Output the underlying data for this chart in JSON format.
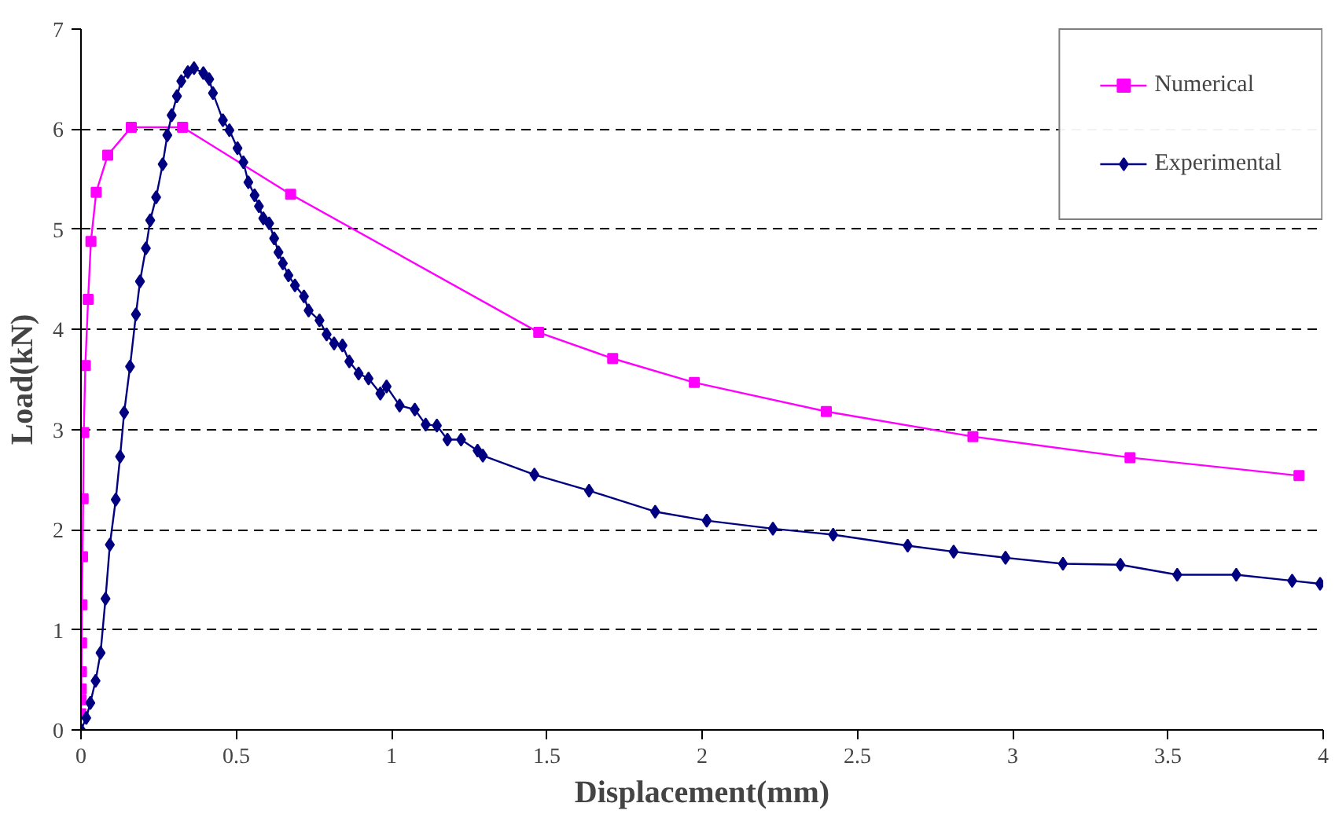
{
  "chart_data": {
    "type": "line",
    "xlabel": "Displacement(mm)",
    "ylabel": "Load(kN)",
    "xlim": [
      0,
      4
    ],
    "xticks": [
      0,
      0.5,
      1,
      1.5,
      2,
      2.5,
      3,
      3.5,
      4
    ],
    "ylim": [
      0,
      7
    ],
    "yticks": [
      0,
      1,
      2,
      3,
      4,
      5,
      6,
      7
    ],
    "grid": "y",
    "legend": "top right",
    "series": [
      {
        "name": "Numerical",
        "color": "#ff00ff",
        "marker": "square",
        "x": [
          0.0,
          0.0005,
          0.001,
          0.0015,
          0.002,
          0.003,
          0.005,
          0.007,
          0.009,
          0.014,
          0.023,
          0.032,
          0.049,
          0.086,
          0.162,
          0.327,
          0.675,
          1.474,
          1.712,
          1.975,
          2.4,
          2.872,
          3.378,
          3.922
        ],
        "values": [
          0.16,
          0.3,
          0.41,
          0.58,
          0.87,
          1.25,
          1.73,
          2.31,
          2.97,
          3.64,
          4.3,
          4.88,
          5.37,
          5.74,
          6.02,
          6.02,
          5.35,
          3.97,
          3.71,
          3.47,
          3.18,
          2.93,
          2.72,
          2.54
        ]
      },
      {
        "name": "Experimental",
        "color": "#000080",
        "marker": "diamond",
        "x": [
          0.0,
          0.017,
          0.03,
          0.047,
          0.063,
          0.079,
          0.093,
          0.112,
          0.126,
          0.139,
          0.158,
          0.177,
          0.19,
          0.209,
          0.223,
          0.242,
          0.263,
          0.278,
          0.292,
          0.309,
          0.323,
          0.344,
          0.364,
          0.394,
          0.413,
          0.425,
          0.457,
          0.478,
          0.504,
          0.523,
          0.539,
          0.559,
          0.573,
          0.587,
          0.606,
          0.622,
          0.636,
          0.65,
          0.668,
          0.689,
          0.718,
          0.733,
          0.768,
          0.791,
          0.815,
          0.842,
          0.864,
          0.894,
          0.926,
          0.964,
          0.984,
          1.026,
          1.075,
          1.11,
          1.146,
          1.18,
          1.224,
          1.277,
          1.294,
          1.46,
          1.636,
          1.849,
          2.015,
          2.228,
          2.422,
          2.662,
          2.81,
          2.977,
          3.162,
          3.347,
          3.53,
          3.72,
          3.9,
          3.99
        ],
        "values": [
          0.0,
          0.12,
          0.27,
          0.49,
          0.77,
          1.31,
          1.85,
          2.3,
          2.73,
          3.17,
          3.63,
          4.15,
          4.48,
          4.81,
          5.09,
          5.32,
          5.65,
          5.94,
          6.14,
          6.33,
          6.48,
          6.57,
          6.61,
          6.56,
          6.5,
          6.36,
          6.09,
          5.99,
          5.81,
          5.67,
          5.47,
          5.34,
          5.23,
          5.11,
          5.06,
          4.91,
          4.77,
          4.66,
          4.54,
          4.44,
          4.33,
          4.19,
          4.09,
          3.95,
          3.86,
          3.84,
          3.68,
          3.56,
          3.51,
          3.36,
          3.43,
          3.24,
          3.2,
          3.05,
          3.04,
          2.9,
          2.9,
          2.79,
          2.74,
          2.55,
          2.39,
          2.18,
          2.09,
          2.01,
          1.95,
          1.84,
          1.78,
          1.72,
          1.66,
          1.65,
          1.55,
          1.55,
          1.49,
          1.46
        ]
      }
    ]
  }
}
